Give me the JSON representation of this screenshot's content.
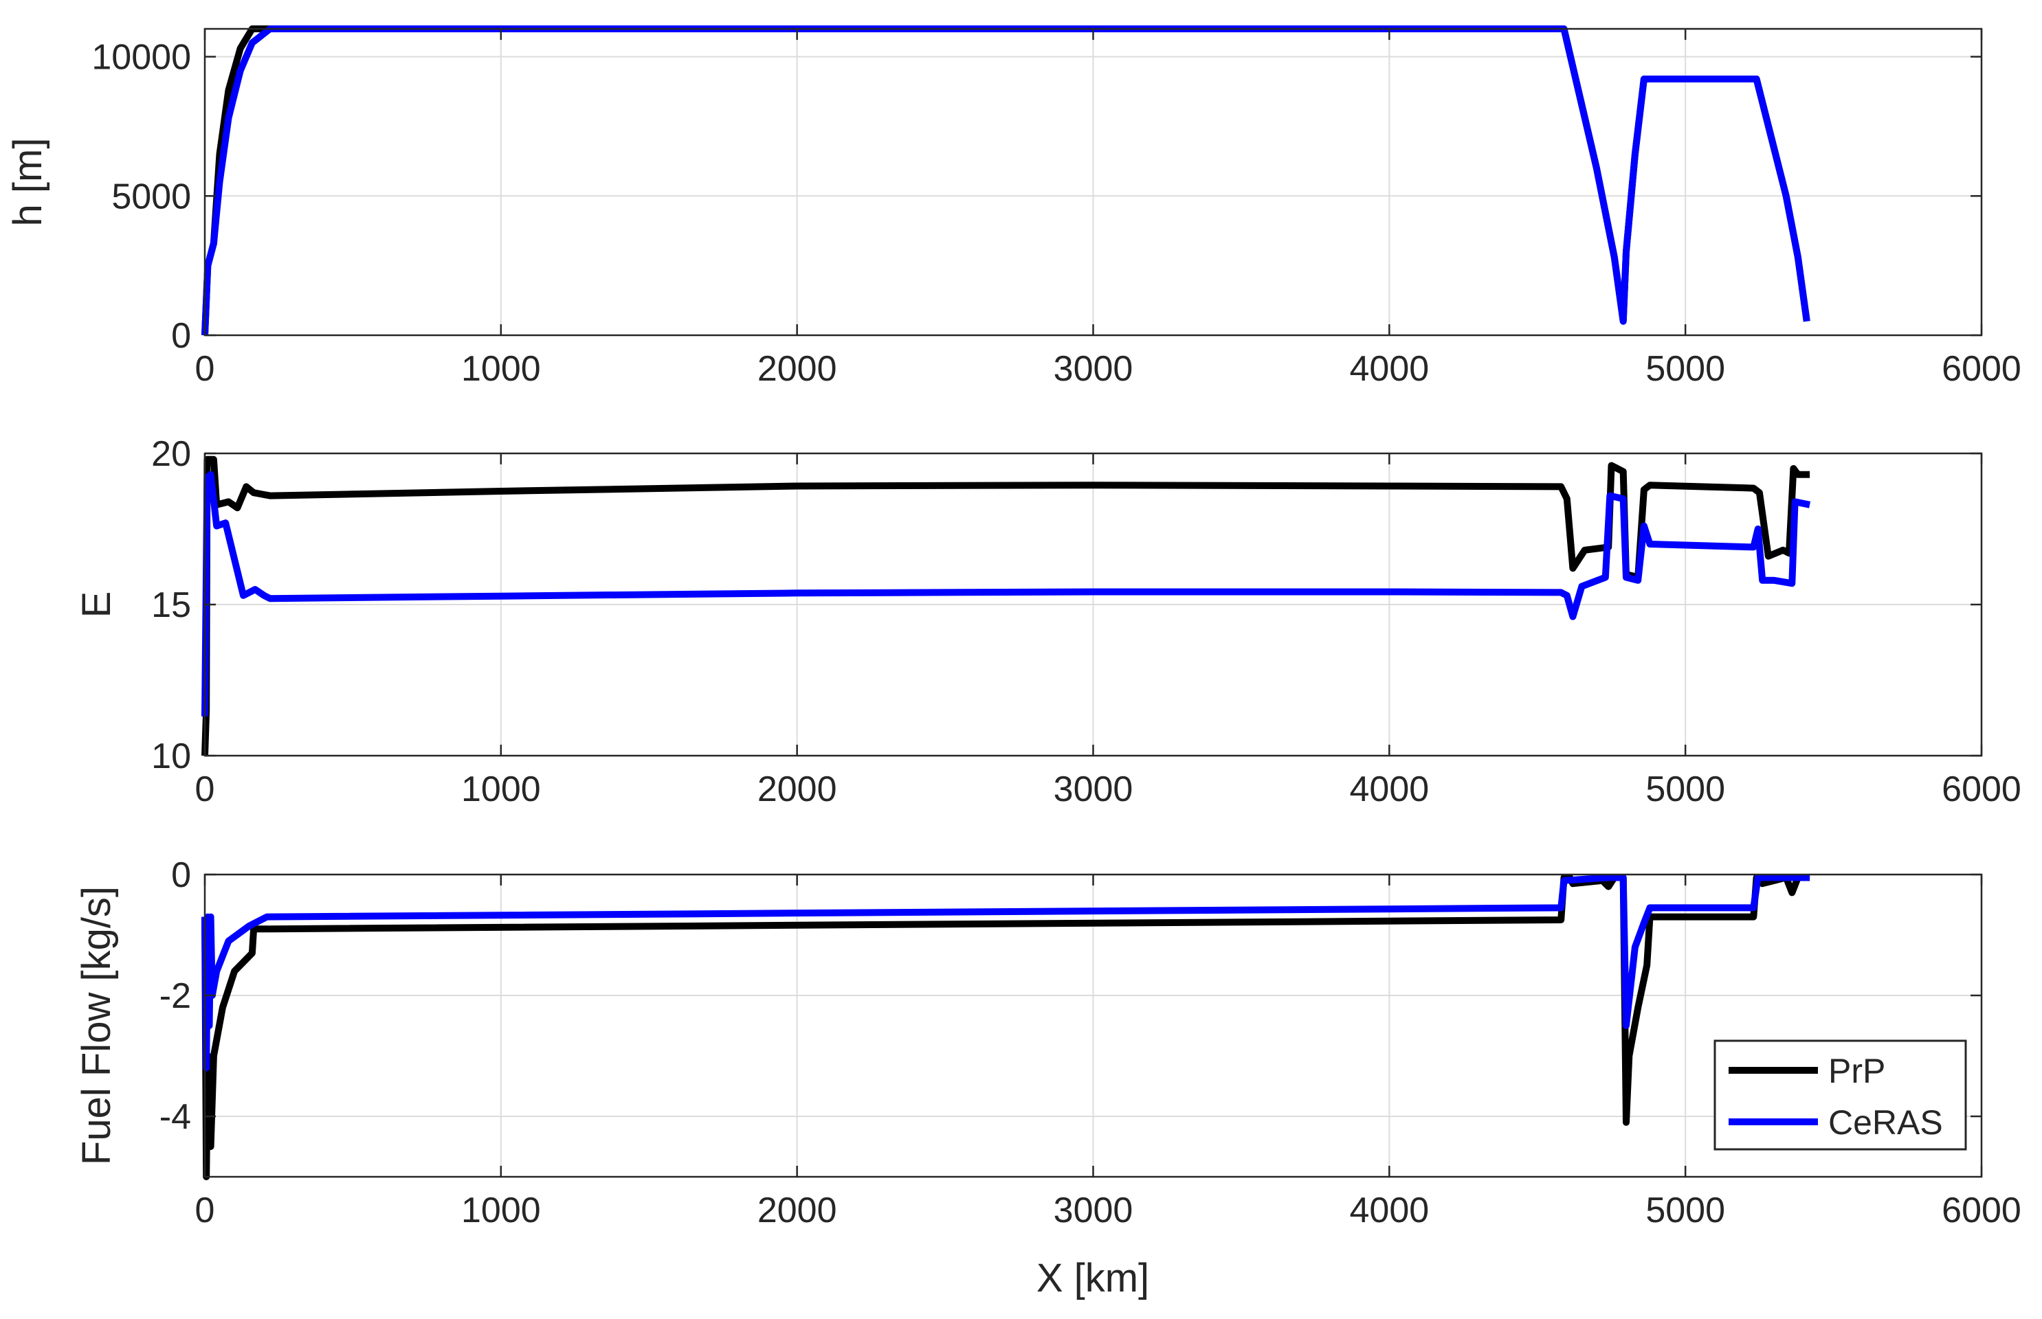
{
  "figure": {
    "xlabel": "X [km]",
    "legend": {
      "placement": "bottom-right of bottom panel",
      "entries": [
        {
          "label": "PrP",
          "color": "#000000"
        },
        {
          "label": "CeRAS",
          "color": "#0000ff"
        }
      ]
    },
    "colors": {
      "PrP": "#000000",
      "CeRAS": "#0000ff",
      "grid": "#dcdcdc",
      "axes": "#262626"
    }
  },
  "chart_data": [
    {
      "type": "line",
      "ylabel": "h [m]",
      "xlabel": "",
      "xlim": [
        0,
        6000
      ],
      "ylim": [
        0,
        11000
      ],
      "xticks": [
        "0",
        "1000",
        "2000",
        "3000",
        "4000",
        "5000",
        "6000"
      ],
      "yticks": [
        "0",
        "5000",
        "10000"
      ],
      "grid": true,
      "series": [
        {
          "name": "PrP",
          "color": "#000000",
          "points": [
            [
              0,
              0
            ],
            [
              10,
              2500
            ],
            [
              30,
              3300
            ],
            [
              50,
              6500
            ],
            [
              80,
              8800
            ],
            [
              120,
              10300
            ],
            [
              160,
              11000
            ],
            [
              4590,
              11000
            ],
            [
              4700,
              6000
            ],
            [
              4760,
              2800
            ],
            [
              4790,
              500
            ],
            [
              4800,
              3000
            ],
            [
              4830,
              6500
            ],
            [
              4860,
              9200
            ],
            [
              5240,
              9200
            ],
            [
              5340,
              5000
            ],
            [
              5380,
              2800
            ],
            [
              5410,
              500
            ]
          ]
        },
        {
          "name": "CeRAS",
          "color": "#0000ff",
          "points": [
            [
              0,
              0
            ],
            [
              10,
              2500
            ],
            [
              30,
              3300
            ],
            [
              50,
              5500
            ],
            [
              80,
              7800
            ],
            [
              120,
              9500
            ],
            [
              160,
              10500
            ],
            [
              220,
              11000
            ],
            [
              4590,
              11000
            ],
            [
              4700,
              6000
            ],
            [
              4760,
              2800
            ],
            [
              4790,
              500
            ],
            [
              4800,
              3000
            ],
            [
              4830,
              6500
            ],
            [
              4860,
              9200
            ],
            [
              5240,
              9200
            ],
            [
              5340,
              5000
            ],
            [
              5380,
              2800
            ],
            [
              5410,
              500
            ]
          ]
        }
      ]
    },
    {
      "type": "line",
      "ylabel": "E",
      "xlabel": "",
      "xlim": [
        0,
        6000
      ],
      "ylim": [
        10,
        20
      ],
      "xticks": [
        "0",
        "1000",
        "2000",
        "3000",
        "4000",
        "5000",
        "6000"
      ],
      "yticks": [
        "10",
        "15",
        "20"
      ],
      "grid": true,
      "series": [
        {
          "name": "PrP",
          "color": "#000000",
          "points": [
            [
              0,
              10
            ],
            [
              5,
              11.5
            ],
            [
              8,
              19.8
            ],
            [
              30,
              19.8
            ],
            [
              40,
              18.3
            ],
            [
              80,
              18.4
            ],
            [
              110,
              18.2
            ],
            [
              140,
              18.9
            ],
            [
              165,
              18.7
            ],
            [
              220,
              18.6
            ],
            [
              1000,
              18.75
            ],
            [
              2000,
              18.92
            ],
            [
              3000,
              18.95
            ],
            [
              4000,
              18.92
            ],
            [
              4580,
              18.9
            ],
            [
              4600,
              18.5
            ],
            [
              4620,
              16.2
            ],
            [
              4660,
              16.8
            ],
            [
              4740,
              16.9
            ],
            [
              4750,
              19.6
            ],
            [
              4770,
              19.5
            ],
            [
              4790,
              19.4
            ],
            [
              4800,
              16.0
            ],
            [
              4840,
              15.9
            ],
            [
              4860,
              18.8
            ],
            [
              4880,
              18.95
            ],
            [
              5230,
              18.85
            ],
            [
              5250,
              18.7
            ],
            [
              5280,
              16.6
            ],
            [
              5330,
              16.8
            ],
            [
              5350,
              16.7
            ],
            [
              5365,
              19.5
            ],
            [
              5380,
              19.3
            ],
            [
              5420,
              19.3
            ]
          ]
        },
        {
          "name": "CeRAS",
          "color": "#0000ff",
          "points": [
            [
              0,
              11.3
            ],
            [
              8,
              19.2
            ],
            [
              20,
              19.3
            ],
            [
              40,
              17.6
            ],
            [
              70,
              17.7
            ],
            [
              100,
              16.5
            ],
            [
              130,
              15.3
            ],
            [
              170,
              15.5
            ],
            [
              200,
              15.3
            ],
            [
              220,
              15.2
            ],
            [
              1000,
              15.28
            ],
            [
              2000,
              15.38
            ],
            [
              3000,
              15.42
            ],
            [
              4000,
              15.42
            ],
            [
              4580,
              15.4
            ],
            [
              4600,
              15.3
            ],
            [
              4620,
              14.6
            ],
            [
              4650,
              15.6
            ],
            [
              4730,
              15.9
            ],
            [
              4745,
              18.6
            ],
            [
              4790,
              18.5
            ],
            [
              4800,
              15.9
            ],
            [
              4840,
              15.8
            ],
            [
              4860,
              17.6
            ],
            [
              4880,
              17.0
            ],
            [
              5230,
              16.9
            ],
            [
              5245,
              17.5
            ],
            [
              5260,
              15.8
            ],
            [
              5300,
              15.8
            ],
            [
              5360,
              15.7
            ],
            [
              5370,
              18.4
            ],
            [
              5420,
              18.3
            ]
          ]
        }
      ]
    },
    {
      "type": "line",
      "ylabel": "Fuel Flow [kg/s]",
      "xlabel": "X [km]",
      "xlim": [
        0,
        6000
      ],
      "ylim": [
        -5,
        0
      ],
      "xticks": [
        "0",
        "1000",
        "2000",
        "3000",
        "4000",
        "5000",
        "6000"
      ],
      "yticks": [
        "-4",
        "-2",
        "0"
      ],
      "grid": true,
      "series": [
        {
          "name": "PrP",
          "color": "#000000",
          "points": [
            [
              0,
              -0.7
            ],
            [
              5,
              -5.0
            ],
            [
              10,
              -3.0
            ],
            [
              20,
              -4.5
            ],
            [
              30,
              -3.0
            ],
            [
              60,
              -2.2
            ],
            [
              100,
              -1.6
            ],
            [
              160,
              -1.3
            ],
            [
              165,
              -0.9
            ],
            [
              220,
              -0.9
            ],
            [
              4580,
              -0.75
            ],
            [
              4590,
              -0.05
            ],
            [
              4610,
              -0.05
            ],
            [
              4620,
              -0.15
            ],
            [
              4720,
              -0.1
            ],
            [
              4740,
              -0.2
            ],
            [
              4760,
              -0.05
            ],
            [
              4790,
              -0.05
            ],
            [
              4800,
              -4.1
            ],
            [
              4810,
              -3.0
            ],
            [
              4840,
              -2.2
            ],
            [
              4870,
              -1.5
            ],
            [
              4880,
              -0.7
            ],
            [
              5230,
              -0.7
            ],
            [
              5240,
              -0.05
            ],
            [
              5260,
              -0.15
            ],
            [
              5340,
              -0.05
            ],
            [
              5360,
              -0.3
            ],
            [
              5380,
              -0.05
            ],
            [
              5420,
              -0.05
            ]
          ]
        },
        {
          "name": "CeRAS",
          "color": "#0000ff",
          "points": [
            [
              0,
              -0.7
            ],
            [
              5,
              -3.2
            ],
            [
              10,
              -0.7
            ],
            [
              15,
              -2.5
            ],
            [
              20,
              -0.7
            ],
            [
              25,
              -2.0
            ],
            [
              40,
              -1.6
            ],
            [
              80,
              -1.1
            ],
            [
              150,
              -0.85
            ],
            [
              210,
              -0.7
            ],
            [
              4580,
              -0.55
            ],
            [
              4590,
              -0.1
            ],
            [
              4740,
              -0.05
            ],
            [
              4790,
              -0.05
            ],
            [
              4800,
              -2.5
            ],
            [
              4830,
              -1.2
            ],
            [
              4860,
              -0.8
            ],
            [
              4880,
              -0.55
            ],
            [
              5230,
              -0.55
            ],
            [
              5245,
              -0.05
            ],
            [
              5420,
              -0.05
            ]
          ]
        }
      ]
    }
  ]
}
